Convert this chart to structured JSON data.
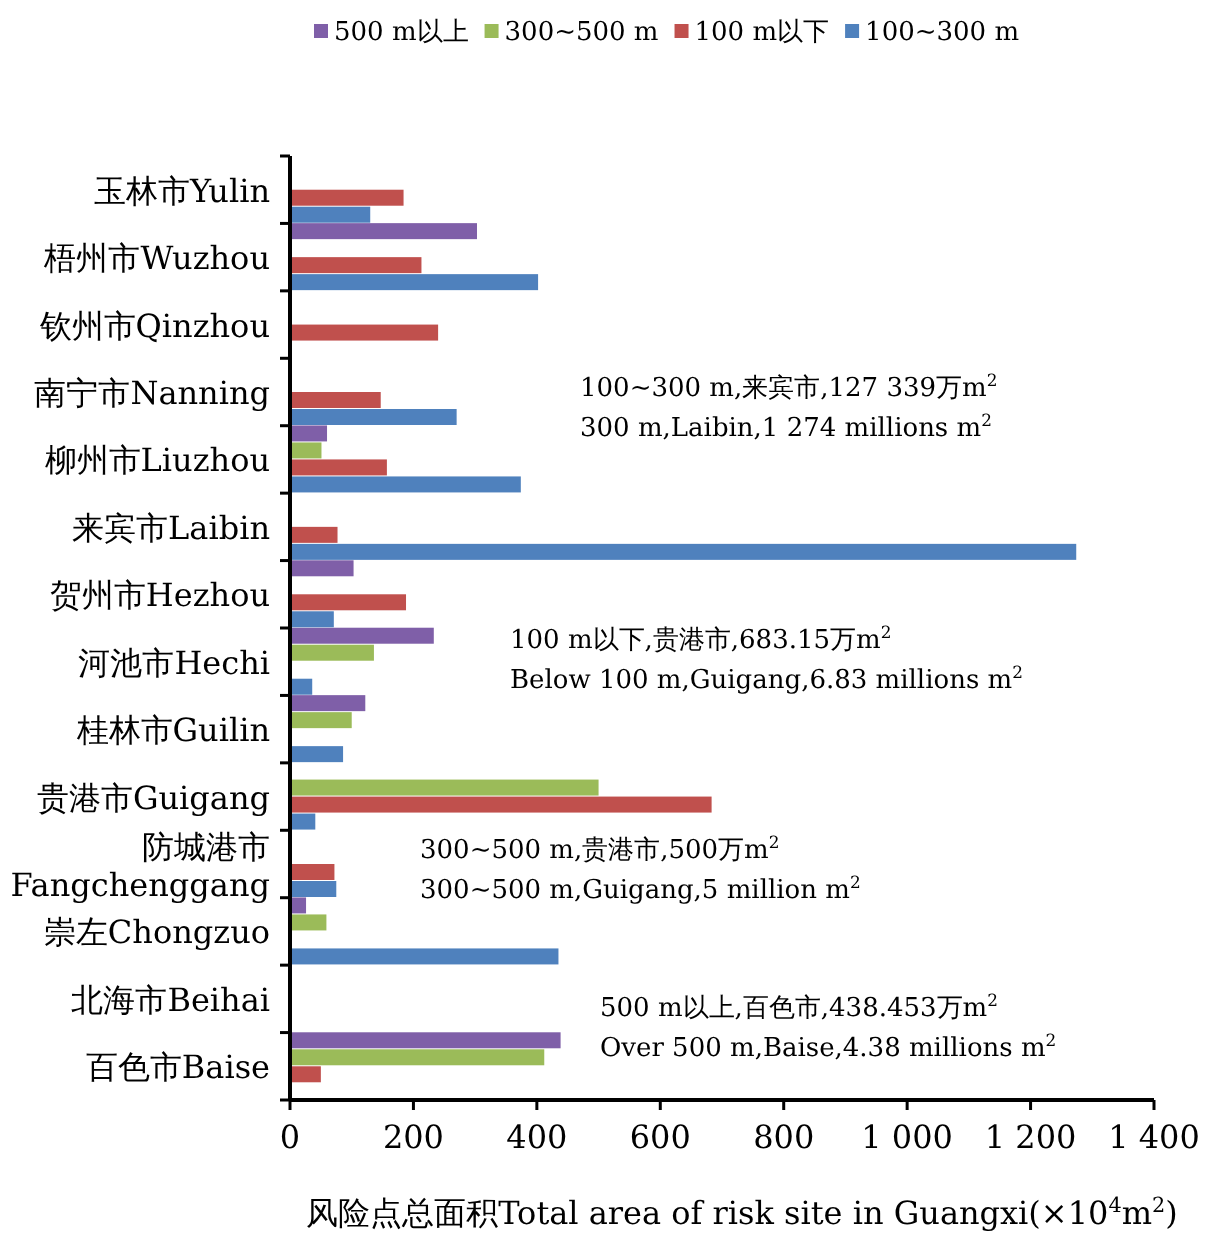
{
  "chart_data": {
    "type": "bar",
    "orientation": "horizontal",
    "categories": [
      "玉林市Yulin",
      "梧州市Wuzhou",
      "钦州市Qinzhou",
      "南宁市Nanning",
      "柳州市Liuzhou",
      "来宾市Laibin",
      "贺州市Hezhou",
      "河池市Hechi",
      "桂林市Guilin",
      "贵港市Guigang",
      "防城港市 Fangchenggang",
      "崇左Chongzuo",
      "北海市Beihai",
      "百色市Baise"
    ],
    "series": [
      {
        "name": "500 m以上",
        "color": "#7f5fa8",
        "values": [
          null,
          303,
          null,
          null,
          60,
          null,
          103,
          233,
          122,
          null,
          null,
          26,
          null,
          438.453
        ]
      },
      {
        "name": "300~500 m",
        "color": "#9bbb59",
        "values": [
          null,
          null,
          null,
          null,
          51,
          null,
          null,
          136,
          100,
          500,
          null,
          59,
          null,
          412
        ]
      },
      {
        "name": "100 m以下",
        "color": "#c0504d",
        "values": [
          184,
          213,
          240,
          147,
          157,
          77,
          188,
          null,
          null,
          683.15,
          72,
          null,
          null,
          50
        ]
      },
      {
        "name": "100~300 m",
        "color": "#4f81bd",
        "values": [
          130,
          402,
          null,
          270,
          374,
          1274,
          71,
          36,
          86,
          41,
          75,
          435,
          null,
          null
        ]
      }
    ],
    "xlim": [
      0,
      1400
    ],
    "xticks": [
      0,
      200,
      400,
      600,
      800,
      {
        "value": 1000,
        "label": "1 000"
      },
      {
        "value": 1200,
        "label": "1 200"
      },
      {
        "value": 1400,
        "label": "1 400"
      }
    ],
    "xlabel": "风险点总面积Total area of risk site in Guangxi(×10$^{4}$m$^{2}$)",
    "legend": "top",
    "annotations": [
      "100~300 m,来宾市,127 339万m$^{2}$",
      "300 m,Laibin,1 274 millions m$^{2}$",
      "100 m以下,贵港市,683.15万m$^{2}$",
      "Below 100 m,Guigang,6.83 millions m$^{2}$",
      "300~500 m,贵港市,500万m$^{2}$",
      "300~500 m,Guigang,5 million m$^{2}$",
      "500 m以上,百色市,438.453万m$^{2}$",
      "Over 500 m,Baise,4.38 millions m$^{2}$"
    ]
  }
}
